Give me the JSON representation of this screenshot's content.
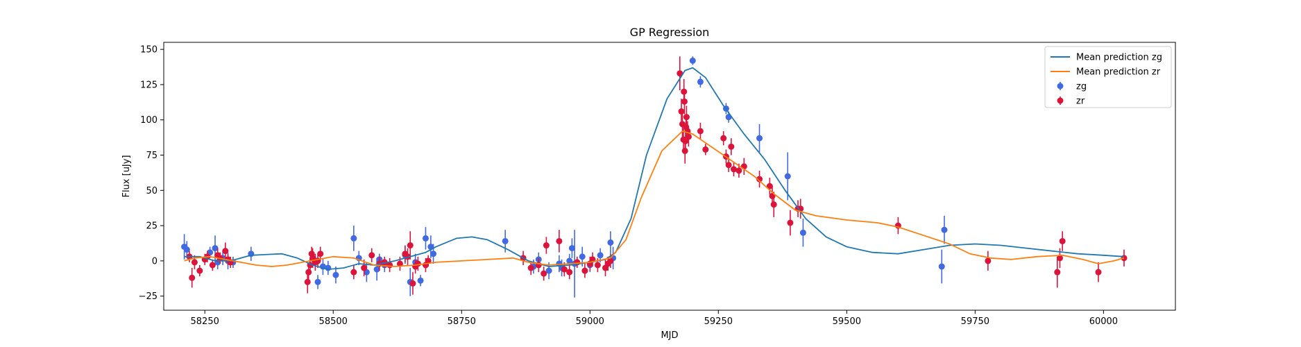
{
  "chart_data": {
    "type": "scatter",
    "title": "GP Regression",
    "xlabel": "MJD",
    "ylabel": "Flux [uJy]",
    "xlim": [
      58170,
      60140
    ],
    "ylim": [
      -35,
      155
    ],
    "xticks": [
      58250,
      58500,
      58750,
      59000,
      59250,
      59500,
      59750,
      60000
    ],
    "yticks": [
      -25,
      0,
      25,
      50,
      75,
      100,
      125,
      150
    ],
    "legend_position": "top-right",
    "grid": false,
    "lines": [
      {
        "name": "Mean prediction zg",
        "color": "#1f77b4",
        "points": [
          [
            58210,
            3
          ],
          [
            58240,
            3
          ],
          [
            58270,
            0
          ],
          [
            58300,
            0
          ],
          [
            58340,
            4
          ],
          [
            58400,
            5
          ],
          [
            58430,
            2
          ],
          [
            58460,
            -3
          ],
          [
            58490,
            -6
          ],
          [
            58520,
            -5
          ],
          [
            58550,
            -2
          ],
          [
            58580,
            -3
          ],
          [
            58620,
            0
          ],
          [
            58650,
            3
          ],
          [
            58680,
            6
          ],
          [
            58700,
            10
          ],
          [
            58740,
            16
          ],
          [
            58770,
            17
          ],
          [
            58800,
            15
          ],
          [
            58840,
            8
          ],
          [
            58880,
            0
          ],
          [
            58920,
            -4
          ],
          [
            58960,
            -3
          ],
          [
            59000,
            -1
          ],
          [
            59030,
            1
          ],
          [
            59050,
            6
          ],
          [
            59080,
            30
          ],
          [
            59110,
            75
          ],
          [
            59150,
            115
          ],
          [
            59185,
            135
          ],
          [
            59200,
            137
          ],
          [
            59225,
            130
          ],
          [
            59260,
            110
          ],
          [
            59300,
            90
          ],
          [
            59340,
            72
          ],
          [
            59380,
            50
          ],
          [
            59420,
            30
          ],
          [
            59460,
            17
          ],
          [
            59500,
            10
          ],
          [
            59550,
            6
          ],
          [
            59600,
            5
          ],
          [
            59650,
            8
          ],
          [
            59700,
            11
          ],
          [
            59750,
            12
          ],
          [
            59800,
            11
          ],
          [
            59850,
            9
          ],
          [
            59900,
            7
          ],
          [
            59950,
            5
          ],
          [
            60000,
            4
          ],
          [
            60040,
            3
          ]
        ]
      },
      {
        "name": "Mean prediction zr",
        "color": "#ff7f0e",
        "points": [
          [
            58210,
            0
          ],
          [
            58230,
            2
          ],
          [
            58260,
            3
          ],
          [
            58290,
            1
          ],
          [
            58320,
            -1
          ],
          [
            58350,
            -3
          ],
          [
            58380,
            -4
          ],
          [
            58410,
            -3
          ],
          [
            58440,
            -1
          ],
          [
            58470,
            1
          ],
          [
            58500,
            3
          ],
          [
            58540,
            2
          ],
          [
            58580,
            -3
          ],
          [
            58620,
            -4
          ],
          [
            58660,
            -3
          ],
          [
            58700,
            -1
          ],
          [
            58750,
            0
          ],
          [
            58800,
            1
          ],
          [
            58850,
            2
          ],
          [
            58880,
            -1
          ],
          [
            58920,
            -3
          ],
          [
            58960,
            -2
          ],
          [
            59000,
            -1
          ],
          [
            59040,
            2
          ],
          [
            59070,
            15
          ],
          [
            59100,
            45
          ],
          [
            59140,
            78
          ],
          [
            59180,
            92
          ],
          [
            59200,
            90
          ],
          [
            59240,
            80
          ],
          [
            59280,
            70
          ],
          [
            59320,
            60
          ],
          [
            59360,
            47
          ],
          [
            59400,
            36
          ],
          [
            59440,
            32
          ],
          [
            59500,
            29
          ],
          [
            59560,
            27
          ],
          [
            59600,
            24
          ],
          [
            59650,
            18
          ],
          [
            59700,
            12
          ],
          [
            59740,
            5
          ],
          [
            59780,
            2
          ],
          [
            59820,
            1
          ],
          [
            59870,
            3
          ],
          [
            59920,
            4
          ],
          [
            59960,
            1
          ],
          [
            59990,
            -2
          ],
          [
            60020,
            0
          ],
          [
            60040,
            2
          ]
        ]
      }
    ],
    "series": [
      {
        "name": "zg",
        "color": "#4169e1",
        "points": [
          [
            58210,
            10,
            9
          ],
          [
            58215,
            8,
            6
          ],
          [
            58260,
            6,
            4
          ],
          [
            58270,
            9,
            9
          ],
          [
            58275,
            -1,
            5
          ],
          [
            58285,
            2,
            5
          ],
          [
            58295,
            0,
            6
          ],
          [
            58305,
            -1,
            4
          ],
          [
            58340,
            5,
            5
          ],
          [
            58470,
            -15,
            5
          ],
          [
            58480,
            -4,
            6
          ],
          [
            58490,
            -5,
            5
          ],
          [
            58505,
            -10,
            6
          ],
          [
            58540,
            16,
            9
          ],
          [
            58550,
            2,
            5
          ],
          [
            58565,
            -8,
            7
          ],
          [
            58585,
            -6,
            8
          ],
          [
            58590,
            1,
            4
          ],
          [
            58600,
            -3,
            5
          ],
          [
            58640,
            4,
            6
          ],
          [
            58650,
            -15,
            10
          ],
          [
            58660,
            -1,
            6
          ],
          [
            58670,
            -14,
            4
          ],
          [
            58680,
            16,
            8
          ],
          [
            58690,
            10,
            8
          ],
          [
            58695,
            5,
            7
          ],
          [
            58835,
            14,
            8
          ],
          [
            58890,
            -4,
            5
          ],
          [
            58900,
            1,
            5
          ],
          [
            58920,
            -7,
            6
          ],
          [
            58940,
            -2,
            6
          ],
          [
            58945,
            -5,
            6
          ],
          [
            58960,
            0,
            5
          ],
          [
            58965,
            9,
            7
          ],
          [
            58970,
            -2,
            24
          ],
          [
            58985,
            3,
            7
          ],
          [
            59000,
            -3,
            5
          ],
          [
            59020,
            4,
            5
          ],
          [
            59040,
            13,
            8
          ],
          [
            59045,
            2,
            8
          ],
          [
            59200,
            142,
            3
          ],
          [
            59215,
            127,
            4
          ],
          [
            59265,
            108,
            4
          ],
          [
            59270,
            102,
            4
          ],
          [
            59330,
            87,
            10
          ],
          [
            59385,
            60,
            17
          ],
          [
            59415,
            20,
            10
          ],
          [
            59685,
            -4,
            12
          ],
          [
            59690,
            22,
            10
          ]
        ]
      },
      {
        "name": "zr",
        "color": "#dc143c",
        "points": [
          [
            58220,
            3,
            4
          ],
          [
            58225,
            -12,
            7
          ],
          [
            58230,
            -1,
            5
          ],
          [
            58240,
            -7,
            4
          ],
          [
            58250,
            1,
            4
          ],
          [
            58255,
            3,
            4
          ],
          [
            58265,
            -3,
            4
          ],
          [
            58275,
            4,
            5
          ],
          [
            58280,
            2,
            4
          ],
          [
            58290,
            7,
            6
          ],
          [
            58295,
            1,
            4
          ],
          [
            58300,
            -1,
            4
          ],
          [
            58450,
            -15,
            8
          ],
          [
            58452,
            -8,
            6
          ],
          [
            58455,
            -3,
            5
          ],
          [
            58458,
            5,
            5
          ],
          [
            58460,
            2,
            7
          ],
          [
            58462,
            1,
            4
          ],
          [
            58465,
            -1,
            6
          ],
          [
            58470,
            0,
            5
          ],
          [
            58475,
            5,
            5
          ],
          [
            58540,
            -8,
            5
          ],
          [
            58560,
            -5,
            6
          ],
          [
            58575,
            4,
            5
          ],
          [
            58590,
            -2,
            5
          ],
          [
            58600,
            -1,
            4
          ],
          [
            58610,
            -3,
            5
          ],
          [
            58630,
            -2,
            5
          ],
          [
            58640,
            5,
            6
          ],
          [
            58645,
            3,
            6
          ],
          [
            58650,
            11,
            10
          ],
          [
            58655,
            -16,
            8
          ],
          [
            58660,
            -4,
            5
          ],
          [
            58665,
            -2,
            5
          ],
          [
            58680,
            -3,
            5
          ],
          [
            58685,
            0,
            4
          ],
          [
            58870,
            2,
            5
          ],
          [
            58885,
            -5,
            5
          ],
          [
            58900,
            -3,
            5
          ],
          [
            58910,
            -9,
            5
          ],
          [
            58915,
            11,
            6
          ],
          [
            58940,
            14,
            8
          ],
          [
            58950,
            -6,
            5
          ],
          [
            58960,
            -8,
            5
          ],
          [
            58975,
            -1,
            4
          ],
          [
            58990,
            -7,
            5
          ],
          [
            59000,
            -2,
            5
          ],
          [
            59005,
            1,
            5
          ],
          [
            59015,
            -3,
            5
          ],
          [
            59030,
            -5,
            6
          ],
          [
            59035,
            -2,
            5
          ],
          [
            59040,
            0,
            5
          ],
          [
            59175,
            133,
            12
          ],
          [
            59178,
            106,
            9
          ],
          [
            59180,
            97,
            10
          ],
          [
            59182,
            86,
            8
          ],
          [
            59183,
            120,
            9
          ],
          [
            59184,
            113,
            9
          ],
          [
            59185,
            78,
            9
          ],
          [
            59186,
            85,
            8
          ],
          [
            59187,
            95,
            8
          ],
          [
            59188,
            102,
            8
          ],
          [
            59190,
            92,
            7
          ],
          [
            59192,
            88,
            7
          ],
          [
            59215,
            92,
            6
          ],
          [
            59225,
            79,
            4
          ],
          [
            59260,
            87,
            5
          ],
          [
            59265,
            74,
            5
          ],
          [
            59270,
            68,
            5
          ],
          [
            59275,
            81,
            6
          ],
          [
            59280,
            65,
            5
          ],
          [
            59290,
            64,
            5
          ],
          [
            59300,
            67,
            6
          ],
          [
            59330,
            58,
            6
          ],
          [
            59350,
            53,
            6
          ],
          [
            59355,
            46,
            7
          ],
          [
            59358,
            40,
            9
          ],
          [
            59390,
            27,
            9
          ],
          [
            59405,
            37,
            6
          ],
          [
            59410,
            37,
            7
          ],
          [
            59600,
            25,
            6
          ],
          [
            59775,
            0,
            7
          ],
          [
            59910,
            -8,
            11
          ],
          [
            59915,
            2,
            7
          ],
          [
            59920,
            14,
            7
          ],
          [
            59990,
            -8,
            7
          ],
          [
            60040,
            2,
            6
          ]
        ]
      }
    ]
  }
}
